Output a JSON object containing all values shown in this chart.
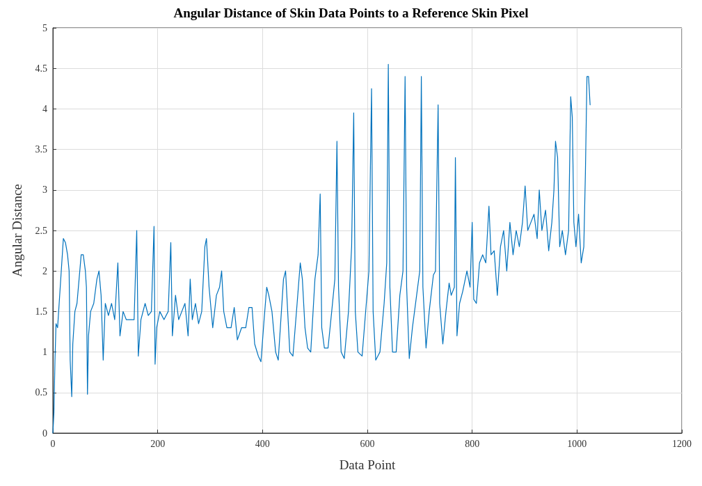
{
  "chart_data": {
    "type": "line",
    "title": "Angular Distance of Skin Data Points to a Reference Skin Pixel",
    "xlabel": "Data Point",
    "ylabel": "Angular Distance",
    "xlim": [
      0,
      1200
    ],
    "xticks": [
      0,
      200,
      400,
      600,
      800,
      1000,
      1200
    ],
    "ylim": [
      0,
      5
    ],
    "yticks": [
      0,
      0.5,
      1,
      1.5,
      2,
      2.5,
      3,
      3.5,
      4,
      4.5,
      5
    ],
    "grid": true,
    "marker": "none",
    "line_style": "solid",
    "series": [
      {
        "color": "#0072bd",
        "x": [
          0,
          2,
          4,
          6,
          9,
          12,
          16,
          20,
          24,
          28,
          31,
          33,
          36,
          38,
          42,
          46,
          50,
          54,
          58,
          62,
          64,
          66,
          68,
          72,
          78,
          84,
          88,
          92,
          96,
          100,
          106,
          112,
          118,
          124,
          128,
          134,
          140,
          148,
          155,
          160,
          163,
          168,
          176,
          182,
          188,
          193,
          195,
          198,
          204,
          212,
          220,
          225,
          228,
          234,
          240,
          246,
          252,
          258,
          262,
          266,
          272,
          278,
          284,
          290,
          293,
          298,
          305,
          312,
          318,
          322,
          326,
          332,
          340,
          346,
          352,
          360,
          368,
          374,
          380,
          385,
          392,
          397,
          403,
          408,
          412,
          418,
          425,
          430,
          440,
          444,
          448,
          452,
          458,
          466,
          472,
          476,
          481,
          486,
          492,
          500,
          506,
          510,
          513,
          518,
          525,
          532,
          538,
          542,
          545,
          550,
          556,
          564,
          570,
          574,
          577,
          582,
          590,
          598,
          603,
          608,
          611,
          616,
          624,
          632,
          637,
          640,
          643,
          648,
          655,
          662,
          668,
          672,
          675,
          680,
          686,
          694,
          700,
          703,
          706,
          712,
          718,
          726,
          730,
          735,
          738,
          744,
          750,
          756,
          760,
          766,
          768,
          771,
          776,
          782,
          790,
          796,
          800,
          803,
          808,
          814,
          820,
          826,
          832,
          836,
          842,
          848,
          854,
          860,
          866,
          872,
          878,
          884,
          890,
          896,
          901,
          906,
          912,
          918,
          924,
          928,
          933,
          940,
          946,
          952,
          956,
          959,
          963,
          967,
          972,
          978,
          984,
          988,
          991,
          994,
          998,
          1003,
          1008,
          1013,
          1016,
          1019,
          1022,
          1025
        ],
        "values": [
          0.0,
          0.25,
          0.9,
          1.35,
          1.3,
          1.6,
          2.0,
          2.4,
          2.35,
          2.2,
          2.0,
          0.9,
          0.45,
          1.1,
          1.5,
          1.6,
          1.9,
          2.2,
          2.2,
          2.0,
          1.8,
          0.48,
          1.2,
          1.5,
          1.6,
          1.9,
          2.0,
          1.7,
          0.9,
          1.6,
          1.45,
          1.6,
          1.4,
          2.1,
          1.2,
          1.5,
          1.4,
          1.4,
          1.4,
          2.5,
          0.95,
          1.4,
          1.6,
          1.45,
          1.5,
          2.55,
          0.85,
          1.3,
          1.5,
          1.4,
          1.5,
          2.35,
          1.2,
          1.7,
          1.4,
          1.5,
          1.6,
          1.2,
          1.9,
          1.4,
          1.6,
          1.35,
          1.5,
          2.3,
          2.4,
          1.8,
          1.3,
          1.7,
          1.8,
          2.0,
          1.5,
          1.3,
          1.3,
          1.55,
          1.15,
          1.3,
          1.3,
          1.55,
          1.55,
          1.1,
          0.95,
          0.88,
          1.4,
          1.8,
          1.7,
          1.5,
          1.0,
          0.9,
          1.9,
          2.0,
          1.5,
          1.0,
          0.95,
          1.6,
          2.1,
          1.9,
          1.3,
          1.05,
          1.0,
          1.9,
          2.2,
          2.95,
          1.3,
          1.05,
          1.05,
          1.5,
          1.9,
          3.6,
          1.8,
          1.0,
          0.92,
          1.5,
          2.3,
          3.95,
          1.5,
          1.0,
          0.95,
          1.6,
          2.0,
          4.25,
          1.5,
          0.9,
          1.0,
          1.6,
          2.1,
          4.55,
          1.8,
          1.0,
          1.0,
          1.7,
          2.0,
          4.4,
          1.8,
          0.92,
          1.3,
          1.7,
          2.0,
          4.4,
          1.8,
          1.05,
          1.5,
          1.95,
          2.0,
          4.05,
          1.6,
          1.1,
          1.5,
          1.85,
          1.7,
          1.8,
          3.4,
          1.2,
          1.6,
          1.75,
          2.0,
          1.8,
          2.6,
          1.65,
          1.6,
          2.1,
          2.2,
          2.1,
          2.8,
          2.2,
          2.25,
          1.7,
          2.3,
          2.5,
          2.0,
          2.6,
          2.2,
          2.5,
          2.3,
          2.6,
          3.05,
          2.5,
          2.6,
          2.7,
          2.4,
          3.0,
          2.5,
          2.75,
          2.25,
          2.6,
          3.0,
          3.6,
          3.4,
          2.3,
          2.5,
          2.2,
          2.5,
          4.15,
          3.9,
          2.6,
          2.3,
          2.7,
          2.1,
          2.3,
          3.2,
          4.4,
          4.4,
          4.05
        ]
      }
    ]
  }
}
